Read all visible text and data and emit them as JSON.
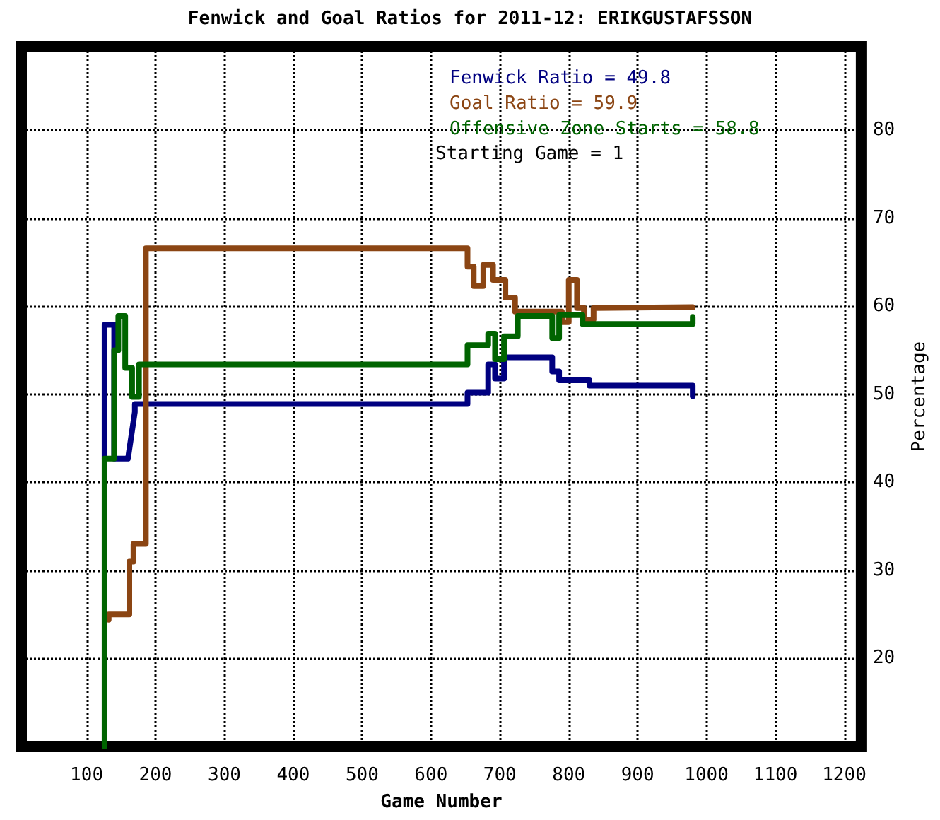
{
  "chart_data": {
    "type": "line",
    "title": "Fenwick and Goal Ratios for 2011-12: ERIKGUSTAFSSON",
    "xlabel": "Game Number",
    "ylabel": "Percentage",
    "annotations": [
      "Starting Game = 1"
    ],
    "xlim": [
      5,
      1225
    ],
    "xticks": [
      100,
      200,
      300,
      400,
      500,
      600,
      700,
      800,
      900,
      1000,
      1100,
      1200
    ],
    "ylim": [
      10,
      89.5
    ],
    "yticks": [
      20,
      30,
      40,
      50,
      60,
      70,
      80
    ],
    "grid": true,
    "legend": "top right",
    "marker": "none",
    "line_style": "solid",
    "tick_labels": "xy2",
    "series": [
      {
        "name": "Fenwick Ratio = 49.8",
        "color": "#000080",
        "x": [
          126,
          126,
          140,
          140,
          160,
          170,
          170,
          653,
          653,
          683,
          683,
          693,
          693,
          706,
          706,
          776,
          776,
          786,
          786,
          820,
          820,
          830,
          830,
          980,
          980
        ],
        "values": [
          42.7,
          57.9,
          57.9,
          42.7,
          42.7,
          48,
          48.9,
          48.9,
          50.2,
          50.2,
          53.4,
          53.4,
          51.8,
          51.8,
          54.2,
          54.2,
          52.6,
          52.6,
          51.6,
          51.6,
          51.6,
          51.6,
          51,
          51,
          49.8
        ]
      },
      {
        "name": "Goal Ratio = 59.9",
        "color": "#8b4513",
        "x": [
          132,
          132,
          162,
          162,
          168,
          168,
          186,
          186,
          653,
          653,
          662,
          662,
          676,
          676,
          690,
          690,
          708,
          708,
          722,
          722,
          790,
          790,
          800,
          800,
          812,
          812,
          822,
          822,
          836,
          836,
          980
        ],
        "values": [
          24.4,
          25,
          25,
          31,
          31,
          33,
          33,
          66.6,
          66.6,
          64.5,
          64.5,
          62.3,
          62.3,
          64.7,
          64.7,
          63,
          63,
          61,
          61,
          59.4,
          59.4,
          58.2,
          58.2,
          63,
          63,
          59.8,
          59.8,
          58.5,
          58.5,
          59.8,
          59.9
        ]
      },
      {
        "name": "Offensive Zone Starts = 58.8",
        "color": "#006400",
        "x": [
          126,
          126,
          140,
          140,
          146,
          146,
          156,
          156,
          166,
          166,
          176,
          176,
          653,
          653,
          683,
          683,
          693,
          693,
          706,
          706,
          726,
          726,
          776,
          776,
          786,
          786,
          820,
          820,
          980,
          980
        ],
        "values": [
          10,
          42.7,
          42.7,
          55,
          55,
          58.9,
          58.9,
          53,
          53,
          49.7,
          49.7,
          53.4,
          53.4,
          55.6,
          55.6,
          56.9,
          56.9,
          54,
          54,
          56.6,
          56.6,
          58.9,
          58.9,
          56.4,
          56.4,
          59,
          59,
          58,
          58,
          58.8
        ]
      }
    ]
  }
}
